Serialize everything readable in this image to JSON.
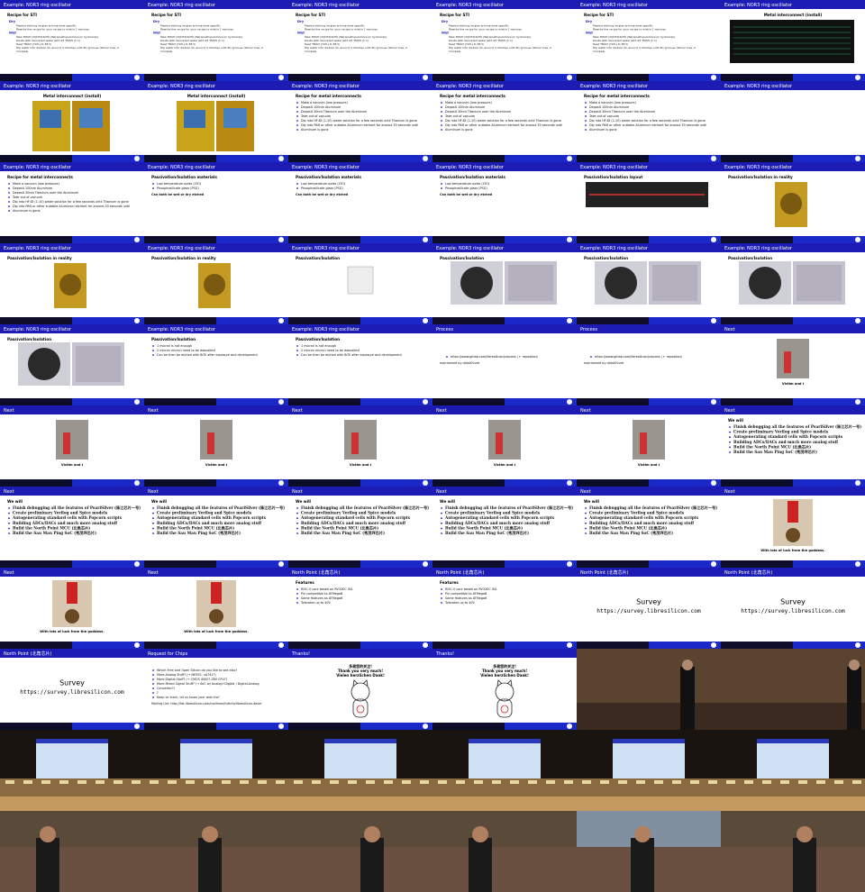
{
  "slides": [
    {
      "title": "Example: NOR3 ring oscillator",
      "heading": "Recipe for STI",
      "groups": [
        {
          "label": "Dry",
          "items": [
            "Plasma etching recipes are machine specific",
            "Rewrite the recipe for your recipe to match 1 minutes"
          ]
        },
        {
          "label": "Wet",
          "items": [
            "Take TMAH (N(CH3)4OH) (Tetramethylammonium hydroxide)",
            "Dilute with deionized water with 25 TMAH (1:1)",
            "Heat TMAH (70%) to 85°C",
            "Dip wafer into dilution for around 4 minutes until 3D grooves (Silicon tres, 2",
            "minutes)"
          ]
        }
      ]
    },
    {
      "title": "Example: NOR3 ring oscillator",
      "heading": "Metal interconnect (install)"
    },
    {
      "title": "Example: NOR3 ring oscillator",
      "heading": "Recipe for metal interconnects",
      "items": [
        "Make a vacuum (low pressure)",
        "Deposit 100nm Aluminum",
        "Deposit 30nm Titanium over the Aluminum",
        "Take out of vacuum",
        "Dip into HF:DI (1:10) water solution for a few seconds until Titanium is gone",
        "Dip into PAN or other suitable Aluminum etchant for around 30 seconds until",
        "Aluminum is gone"
      ]
    },
    {
      "title": "Example: NOR3 ring oscillator",
      "heading": "Passivation/Isolation materials",
      "items": [
        "Low temperature oxide (LTO)",
        "Phosphosilicate glass (PSG)"
      ],
      "note": "Can both be wet or dry etched"
    },
    {
      "title": "Example: NOR3 ring oscillator",
      "heading": "Passivation/Isolation layout"
    },
    {
      "title": "Example: NOR3 ring oscillator",
      "heading": "Passivation/Isolation in reality"
    },
    {
      "title": "Example: NOR3 ring oscillator",
      "heading": "Passivation/Isolation"
    },
    {
      "title": "Example: NOR3 ring oscillator",
      "heading": "Passivation/Isolation",
      "items": [
        "1 micron is not enough",
        "2 micron micron need to be deposited",
        "Can be then be etched with BOE after exposure and development"
      ]
    },
    {
      "title": "Process",
      "items": [
        "https://www.gitlab.com/libresilicon/process | ← repository"
      ],
      "note": "maintained by dataXhuntr"
    },
    {
      "title": "Next",
      "caption": "Victim and I"
    },
    {
      "title": "Next",
      "heading": "We will",
      "items": [
        "Finish debugging all the features of PeariSilver (珠江芯片一号)",
        "Create preliminary Verilog and Spice models",
        "Autogenerating standard cells with Popcorn scripts",
        "Building ADCs/DACs and much more analog stuff",
        "Build the North Point MCU (北角芯片)",
        "Build the Sau Mau Ping SoC (秀茂坪芯片)"
      ]
    },
    {
      "title": "Next",
      "caption": "With lots of luck from the goddess."
    },
    {
      "title": "North Point (北角芯片)",
      "heading": "Features",
      "items": [
        "RISC-V core based on RV32EC ISA",
        "Pin compatible to ATMega8",
        "Same features as ATMega8",
        "Tolerates up to 40V"
      ]
    },
    {
      "title": "North Point (北角芯片)",
      "heading": "Survey",
      "url": "https://survey.libresilicon.com"
    },
    {
      "title": "Request for Chips",
      "items": [
        "Which Free and Open Silicon do you like to see also?",
        "More Analog Stuff? (→ NE555, uA741?)",
        "More Digital Stuff? (→ CMOS 4000? Z80 CPU?)",
        "More Mixed Signal Stuff? (→ SoC w/ Analog+Digital / Digital-Analog",
        "Converter?)",
        "?",
        "Keep on track, let us know your wish list!"
      ],
      "note": "Mailing List: http://list.libresilicon.com/mailman/listinfo/libresilicon-devel"
    },
    {
      "title": "Thanks!",
      "lines": [
        "多谢您的关注!",
        "Thank you very much!",
        "Vielen herzlichen Dank!"
      ]
    }
  ]
}
